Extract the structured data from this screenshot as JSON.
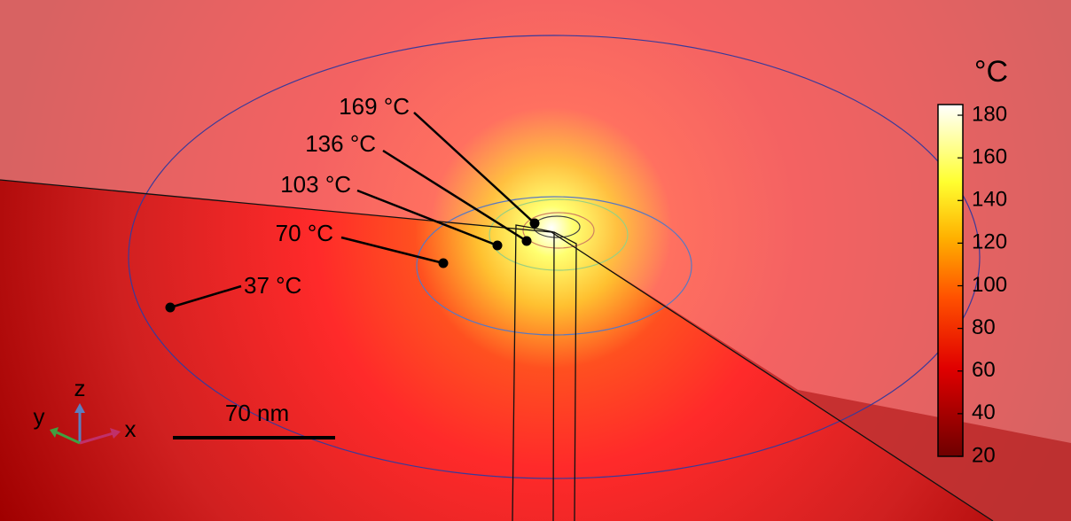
{
  "colorbar": {
    "unit": "°C",
    "lim": [
      20,
      185
    ],
    "ticks": [
      20,
      40,
      60,
      80,
      100,
      120,
      140,
      160,
      180
    ]
  },
  "contour_labels": [
    "169 °C",
    "136 °C",
    "103 °C",
    "70 °C",
    "37 °C"
  ],
  "scale_bar": "70 nm",
  "axes": {
    "x": "x",
    "y": "y",
    "z": "z"
  }
}
